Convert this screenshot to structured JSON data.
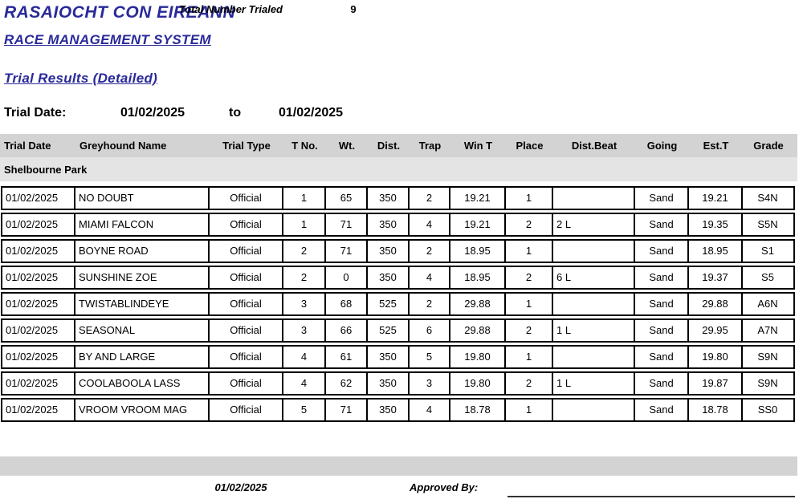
{
  "report": {
    "org_title": "RASAIOCHT CON EIREANN",
    "system_title": "RACE MANAGEMENT SYSTEM",
    "report_title": "Trial Results (Detailed)",
    "accent_color": "#29299a"
  },
  "filter": {
    "label": "Trial Date:",
    "from_date": "01/02/2025",
    "to_label": "to",
    "to_date": "01/02/2025"
  },
  "table": {
    "columns": [
      "Trial Date",
      "Greyhound Name",
      "Trial Type",
      "T No.",
      "Wt.",
      "Dist.",
      "Trap",
      "Win T",
      "Place",
      "Dist.Beat",
      "Going",
      "Est.T",
      "Grade"
    ],
    "section": "Shelbourne Park",
    "rows": [
      [
        "01/02/2025",
        "NO DOUBT",
        "Official",
        "1",
        "65",
        "350",
        "2",
        "19.21",
        "1",
        "",
        "Sand",
        "19.21",
        "S4N"
      ],
      [
        "01/02/2025",
        "MIAMI FALCON",
        "Official",
        "1",
        "71",
        "350",
        "4",
        "19.21",
        "2",
        "2 L",
        "Sand",
        "19.35",
        "S5N"
      ],
      [
        "01/02/2025",
        "BOYNE ROAD",
        "Official",
        "2",
        "71",
        "350",
        "2",
        "18.95",
        "1",
        "",
        "Sand",
        "18.95",
        "S1"
      ],
      [
        "01/02/2025",
        "SUNSHINE ZOE",
        "Official",
        "2",
        "0",
        "350",
        "4",
        "18.95",
        "2",
        "6 L",
        "Sand",
        "19.37",
        "S5"
      ],
      [
        "01/02/2025",
        "TWISTABLINDEYE",
        "Official",
        "3",
        "68",
        "525",
        "2",
        "29.88",
        "1",
        "",
        "Sand",
        "29.88",
        "A6N"
      ],
      [
        "01/02/2025",
        "SEASONAL",
        "Official",
        "3",
        "66",
        "525",
        "6",
        "29.88",
        "2",
        "1 L",
        "Sand",
        "29.95",
        "A7N"
      ],
      [
        "01/02/2025",
        "BY AND LARGE",
        "Official",
        "4",
        "61",
        "350",
        "5",
        "19.80",
        "1",
        "",
        "Sand",
        "19.80",
        "S9N"
      ],
      [
        "01/02/2025",
        "COOLABOOLA LASS",
        "Official",
        "4",
        "62",
        "350",
        "3",
        "19.80",
        "2",
        "1 L",
        "Sand",
        "19.87",
        "S9N"
      ],
      [
        "01/02/2025",
        "VROOM VROOM MAG",
        "Official",
        "5",
        "71",
        "350",
        "4",
        "18.78",
        "1",
        "",
        "Sand",
        "18.78",
        "SS0"
      ]
    ]
  },
  "footer": {
    "total_label": "Total Number Trialed",
    "total_value": "9",
    "date": "01/02/2025",
    "approved_label": "Approved By:"
  }
}
